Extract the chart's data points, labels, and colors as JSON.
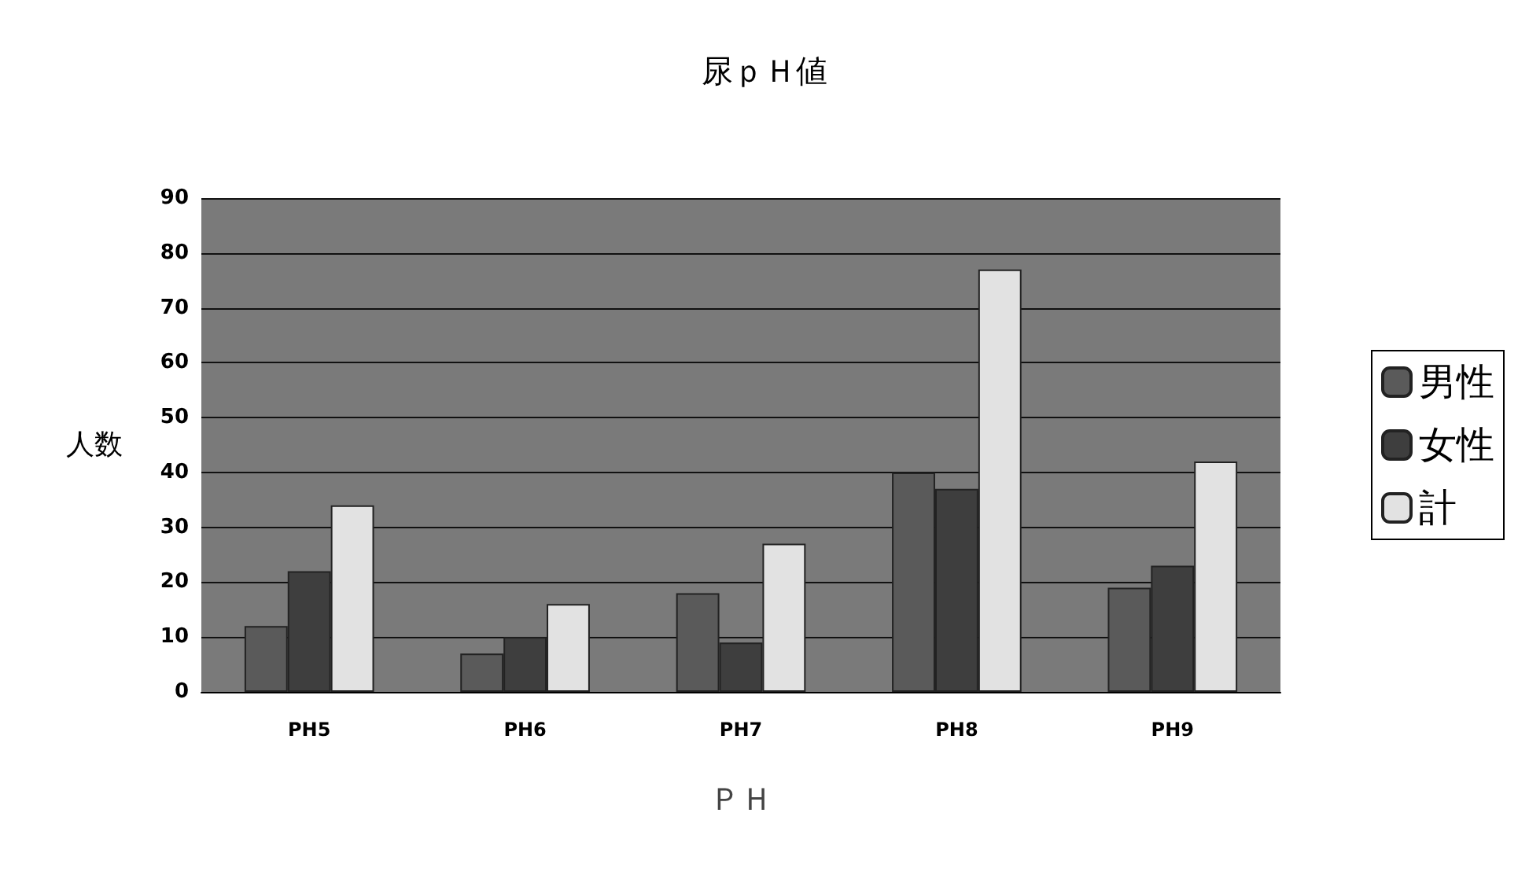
{
  "chart_data": {
    "type": "bar",
    "title": "尿ｐＨ値",
    "xlabel": "ＰＨ",
    "ylabel": "人数",
    "categories": [
      "PH5",
      "PH6",
      "PH7",
      "PH8",
      "PH9"
    ],
    "series": [
      {
        "name": "男性",
        "color": "#5a5a5a",
        "values": [
          12,
          7,
          18,
          40,
          19
        ]
      },
      {
        "name": "女性",
        "color": "#3e3e3e",
        "values": [
          22,
          10,
          9,
          37,
          23
        ]
      },
      {
        "name": "計",
        "color": "#e2e2e2",
        "values": [
          34,
          16,
          27,
          77,
          42
        ]
      }
    ],
    "ylim": [
      0,
      90
    ],
    "yticks": [
      0,
      10,
      20,
      30,
      40,
      50,
      60,
      70,
      80,
      90
    ],
    "grid": "y",
    "legend": "right"
  }
}
